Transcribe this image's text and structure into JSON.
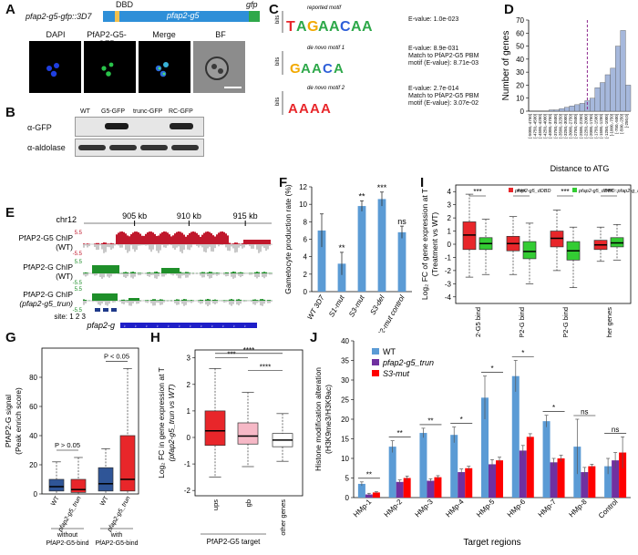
{
  "A": {
    "label": "A",
    "construct_name": "pfap2-g5-gfp::3D7",
    "dbd": "DBD",
    "gene": "pfap2-g5",
    "gfp": "gfp",
    "micro_titles": [
      "DAPI",
      "PfAP2-G5-GFP",
      "Merge",
      "BF"
    ]
  },
  "B": {
    "label": "B",
    "lanes": [
      "WT",
      "G5-GFP",
      "trunc-GFP",
      "RC-GFP"
    ],
    "rows": [
      "α-GFP",
      "α-aldolase"
    ]
  },
  "C": {
    "label": "C",
    "motifs": [
      {
        "title": "reported motif",
        "stats": [
          "E-value: 1.0e-023"
        ]
      },
      {
        "title": "de novo motif 1",
        "stats": [
          "E-value: 8.9e-031",
          "Match to PfAP2-G5 PBM",
          "motif (E-value): 8.71e-03"
        ]
      },
      {
        "title": "de novo motif 2",
        "stats": [
          "E-value: 2.7e-014",
          "Match to PfAP2-G5 PBM",
          "motif (E-value): 3.07e-02"
        ]
      }
    ],
    "ylabel": "bits"
  },
  "D": {
    "label": "D",
    "ylabel": "Number of genes",
    "xlabel": "Distance to ATG"
  },
  "E": {
    "label": "E",
    "chrom": "chr12",
    "kb_ticks": [
      "905 kb",
      "910 kb",
      "915 kb"
    ],
    "tracks": [
      {
        "name": "PfAP2-G5 ChIP",
        "sub": "(WT)",
        "hi": "5.5",
        "lo": "-5.5"
      },
      {
        "name": "PfAP2-G ChIP",
        "sub": "(WT)",
        "hi": "5.5",
        "lo": "-5.5"
      },
      {
        "name": "PfAP2-G ChIP",
        "sub": "(pfap2-g5_trun)",
        "hi": "5.5",
        "lo": "-5.5"
      }
    ],
    "site_label": "site: 1 2 3",
    "gene_label": "pfap2-g"
  },
  "F": {
    "label": "F"
  },
  "G": {
    "label": "G",
    "groups": [
      "without PfAP2-G5-bind",
      "with PfAP2-G5-bind"
    ],
    "pvals": [
      "P > 0.05",
      "P < 0.05"
    ]
  },
  "H": {
    "label": "H",
    "sig": [
      "***",
      "****",
      "****"
    ]
  },
  "I": {
    "label": "I",
    "legend": [
      "pfap2-g5_dDBD",
      "pfap2-g5_dDBD::pfap2-g_ko"
    ]
  },
  "J": {
    "label": "J",
    "sig": [
      "**",
      "**",
      "**",
      "*",
      "*",
      "*",
      "*",
      "ns",
      "ns"
    ]
  },
  "chart_data": [
    {
      "type": "bar",
      "panel": "D",
      "categories": [
        "[-5000,-4750]",
        "[-4750,-4500]",
        "[-4500,-4250]",
        "[-4250,-4000]",
        "[-4000,-3750]",
        "[-3750,-3500]",
        "[-3500,-3250]",
        "[-3250,-3000]",
        "[-3000,-2750]",
        "[-2750,-2500]",
        "[-2500,-2250]",
        "[-2250,-2000]",
        "[-2000,-1750]",
        "[-1750,-1500]",
        "[-1500,-1250]",
        "[-1250,-1000]",
        "[-1000,-750]",
        "[-750,-500]",
        "[-500,-250]",
        "[-250,0]"
      ],
      "values": [
        0,
        0,
        0,
        0,
        1,
        1,
        2,
        3,
        4,
        5,
        6,
        8,
        10,
        18,
        22,
        28,
        33,
        50,
        62,
        20
      ],
      "ylim": [
        0,
        70
      ],
      "yticks": [
        0,
        10,
        20,
        30,
        40,
        50,
        60,
        70
      ],
      "ylabel": "Number of genes",
      "xlabel": "Distance to ATG",
      "color": "#a6b8dc",
      "marker_line_category": "[-2250,-2000]"
    },
    {
      "type": "bar",
      "panel": "F",
      "categories": [
        "WT 3D7",
        "S1-mut",
        "S3-mut",
        "S3-del",
        "S2-mut control"
      ],
      "values": [
        7.0,
        3.2,
        9.8,
        10.6,
        6.8
      ],
      "errors": [
        1.9,
        1.3,
        0.6,
        0.8,
        0.7
      ],
      "sig": [
        "",
        "**",
        "**",
        "***",
        "ns"
      ],
      "ylim": [
        0,
        12
      ],
      "yticks": [
        0,
        2,
        4,
        6,
        8,
        10,
        12
      ],
      "ylabel": "Gametocyte production rate (%)",
      "color": "#5b9bd5"
    },
    {
      "type": "box",
      "panel": "G",
      "ylabel": "PfAP2-G signal",
      "ylabel2": "(Peak enrich score)",
      "ylim": [
        0,
        100
      ],
      "yticks": [
        0,
        20,
        40,
        60,
        80
      ],
      "boxes": [
        {
          "label": "WT",
          "color": "#2f5597",
          "min": 0,
          "q1": 2,
          "med": 5,
          "q3": 10,
          "max": 22
        },
        {
          "label": "pfap2-g5_trun",
          "color": "#e8262a",
          "min": 0,
          "q1": 1,
          "med": 3,
          "q3": 10,
          "max": 25
        },
        {
          "label": "WT",
          "color": "#2f5597",
          "min": 0,
          "q1": 2,
          "med": 7,
          "q3": 18,
          "max": 31
        },
        {
          "label": "pfap2-g5_trun",
          "color": "#e8262a",
          "min": 0,
          "q1": 2,
          "med": 10,
          "q3": 40,
          "max": 86
        }
      ]
    },
    {
      "type": "box",
      "panel": "H",
      "ylabel": "Log₂ FC in gene expression at T",
      "ylabel2": "(pfap2-g5_trun vs WT)",
      "xlabel": "PfAP2-G5 target",
      "ylim": [
        -2.2,
        3.3
      ],
      "yticks": [
        -2,
        -1,
        0,
        1,
        2,
        3
      ],
      "boxes": [
        {
          "label": "ups",
          "color": "#e8262a",
          "min": -1.5,
          "q1": -0.3,
          "med": 0.25,
          "q3": 1.0,
          "max": 2.6
        },
        {
          "label": "gb",
          "color": "#f6b8c6",
          "min": -1.1,
          "q1": -0.25,
          "med": 0.05,
          "q3": 0.55,
          "max": 1.7
        },
        {
          "label": "other genes",
          "color": "#ffffff",
          "min": -0.9,
          "q1": -0.35,
          "med": -0.1,
          "q3": 0.15,
          "max": 0.9
        }
      ]
    },
    {
      "type": "box",
      "panel": "I",
      "ylabel": "Log₂ FC of gene expression at T",
      "ylabel2": "(Treatment vs WT)",
      "ylim": [
        -4.5,
        4.5
      ],
      "yticks": [
        -4,
        -3,
        -2,
        -1,
        0,
        1,
        2,
        3,
        4
      ],
      "categories": [
        "only PfAP2-G5 bind",
        "only PfAP2-G bind",
        "both PfAP2-G5 & PfAP2-G bind",
        "other genes"
      ],
      "series": [
        {
          "name": "pfap2-g5_dDBD",
          "color": "#e8262a",
          "boxes": [
            {
              "min": -2.5,
              "q1": -0.4,
              "med": 0.7,
              "q3": 1.7,
              "max": 3.8
            },
            {
              "min": -2.3,
              "q1": -0.5,
              "med": 0.05,
              "q3": 0.6,
              "max": 2.1
            },
            {
              "min": -2.0,
              "q1": -0.2,
              "med": 0.45,
              "q3": 1.0,
              "max": 2.6
            },
            {
              "min": -1.3,
              "q1": -0.4,
              "med": -0.05,
              "q3": 0.3,
              "max": 1.3
            }
          ]
        },
        {
          "name": "pfap2-g5_dDBD::pfap2-g_ko",
          "color": "#33cc33",
          "boxes": [
            {
              "min": -2.3,
              "q1": -0.4,
              "med": 0.05,
              "q3": 0.5,
              "max": 1.9
            },
            {
              "min": -3.0,
              "q1": -1.1,
              "med": -0.55,
              "q3": 0.2,
              "max": 1.6
            },
            {
              "min": -3.3,
              "q1": -1.2,
              "med": -0.5,
              "q3": 0.2,
              "max": 1.3
            },
            {
              "min": -1.2,
              "q1": -0.2,
              "med": 0.1,
              "q3": 0.5,
              "max": 1.5
            }
          ]
        }
      ],
      "sig": [
        "***",
        "***",
        "***",
        "***"
      ]
    },
    {
      "type": "bar",
      "panel": "J",
      "ylabel": "Histone modification alteration",
      "ylabel2": "(H3K9me3/H3K9ac)",
      "xlabel": "Target regions",
      "ylim": [
        0,
        40
      ],
      "yticks": [
        0,
        5,
        10,
        15,
        20,
        25,
        30,
        35,
        40
      ],
      "categories": [
        "HMp-1",
        "HMp-2",
        "HMp-3",
        "HMp-4",
        "HMp-5",
        "HMp-6",
        "HMp-7",
        "HMp-8",
        "Control"
      ],
      "series": [
        {
          "name": "WT",
          "color": "#5b9bd5",
          "values": [
            3.5,
            13,
            16.5,
            16,
            25.5,
            31,
            19.5,
            13,
            8
          ],
          "errors": [
            0.5,
            1.5,
            1.2,
            2,
            5.5,
            4,
            1.5,
            7,
            2
          ]
        },
        {
          "name": "pfap2-g5_trun",
          "color": "#7030a0",
          "values": [
            0.8,
            4,
            4.3,
            6.5,
            8.5,
            12,
            9,
            6.5,
            9.5
          ],
          "errors": [
            0.3,
            0.5,
            0.5,
            0.8,
            1.2,
            1.3,
            1,
            1.2,
            2
          ]
        },
        {
          "name": "S3-mut",
          "color": "#ff0000",
          "values": [
            1.3,
            5,
            5.2,
            7.5,
            9.5,
            15.5,
            10,
            8,
            11.5
          ],
          "errors": [
            0.2,
            0.5,
            0.4,
            0.5,
            0.8,
            0.8,
            0.8,
            0.5,
            4
          ]
        }
      ]
    }
  ]
}
